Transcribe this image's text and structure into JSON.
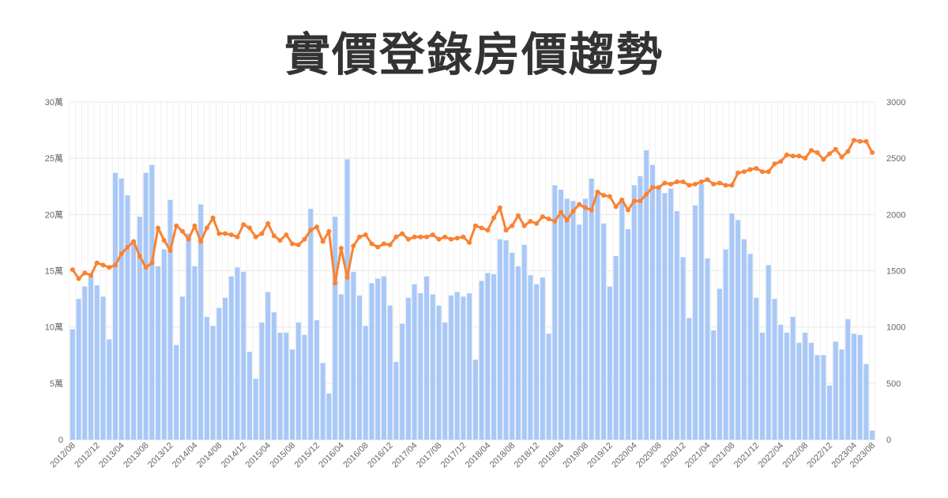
{
  "chart_data": {
    "type": "bar+line",
    "title": "實價登錄房價趨勢",
    "y_left": {
      "min": 0,
      "max": 300000,
      "ticks": [
        "0",
        "5萬",
        "10萬",
        "15萬",
        "20萬",
        "25萬",
        "30萬"
      ]
    },
    "y_right": {
      "min": 0,
      "max": 3000,
      "ticks": [
        "0",
        "500",
        "1000",
        "1500",
        "2000",
        "2500",
        "3000"
      ]
    },
    "x_start": "2012/08",
    "x_end": "2023/08",
    "x_labels": [
      "2012/08",
      "2012/12",
      "2013/04",
      "2013/08",
      "2013/12",
      "2014/04",
      "2014/08",
      "2014/12",
      "2015/04",
      "2015/08",
      "2015/12",
      "2016/04",
      "2016/08",
      "2016/12",
      "2017/04",
      "2017/08",
      "2017/12",
      "2018/04",
      "2018/08",
      "2018/12",
      "2019/04",
      "2019/08",
      "2019/12",
      "2020/04",
      "2020/08",
      "2020/12",
      "2021/04",
      "2021/08",
      "2021/12",
      "2022/04",
      "2022/08",
      "2022/12",
      "2023/04",
      "2023/08"
    ],
    "bar_color": "#a8c8f8",
    "line_color": "#fa8231",
    "series": [
      {
        "type": "bar",
        "axis": "right",
        "values": [
          980,
          1250,
          1360,
          1450,
          1370,
          1270,
          890,
          2370,
          2320,
          2170,
          1770,
          1980,
          2370,
          2440,
          1540,
          1690,
          2130,
          840,
          1270,
          1830,
          1540,
          2090,
          1090,
          1010,
          1170,
          1260,
          1450,
          1530,
          1490,
          780,
          540,
          1040,
          1310,
          1130,
          950,
          950,
          800,
          1040,
          930,
          2050,
          1060,
          680,
          410,
          1980,
          1290,
          2490,
          1490,
          1280,
          1010,
          1390,
          1430,
          1450,
          1190,
          690,
          1030,
          1260,
          1380,
          1300,
          1450,
          1290,
          1190,
          1040,
          1280,
          1310,
          1270,
          1300,
          710,
          1410,
          1480,
          1470,
          1780,
          1770,
          1660,
          1540,
          1730,
          1460,
          1380,
          1440,
          940,
          2260,
          2220,
          2140,
          2120,
          1910,
          2140,
          2320,
          2210,
          1920,
          1360,
          1630,
          2120,
          1870,
          2260,
          2340,
          2570,
          2440,
          2240,
          2190,
          2230,
          2030,
          1620,
          1080,
          2080,
          2270,
          1610,
          970,
          1340,
          1690,
          2010,
          1950,
          1780,
          1650,
          1260,
          950,
          1550,
          1250,
          1020,
          950,
          1090,
          860,
          950,
          860,
          750,
          750,
          480,
          870,
          800,
          1070,
          940,
          930,
          670,
          80
        ],
        "name": ""
      },
      {
        "type": "line",
        "axis": "left",
        "values": [
          151000,
          143000,
          148000,
          146000,
          157000,
          155000,
          153000,
          155000,
          165000,
          171000,
          176000,
          163000,
          153000,
          157000,
          188000,
          177000,
          168000,
          190000,
          185000,
          178000,
          190000,
          176000,
          188000,
          197000,
          183000,
          183000,
          182000,
          180000,
          191000,
          188000,
          180000,
          183000,
          192000,
          181000,
          177000,
          182000,
          174000,
          173000,
          178000,
          186000,
          189000,
          176000,
          185000,
          139000,
          170000,
          144000,
          172000,
          180000,
          182000,
          174000,
          171000,
          174000,
          173000,
          180000,
          183000,
          178000,
          180000,
          180000,
          180000,
          182000,
          178000,
          180000,
          178000,
          179000,
          180000,
          175000,
          190000,
          188000,
          186000,
          197000,
          206000,
          186000,
          190000,
          199000,
          190000,
          194000,
          192000,
          198000,
          196000,
          194000,
          202000,
          195000,
          203000,
          209000,
          206000,
          204000,
          220000,
          217000,
          216000,
          207000,
          213000,
          204000,
          212000,
          212000,
          218000,
          224000,
          224000,
          228000,
          227000,
          229000,
          229000,
          226000,
          227000,
          229000,
          231000,
          227000,
          228000,
          226000,
          226000,
          237000,
          238000,
          240000,
          241000,
          238000,
          238000,
          245000,
          247000,
          253000,
          252000,
          252000,
          250000,
          257000,
          255000,
          249000,
          254000,
          258000,
          251000,
          256000,
          266000,
          265000,
          265000,
          255000
        ],
        "name": ""
      }
    ],
    "grid": {
      "vertical": true,
      "horizontal": true
    },
    "legend": "none"
  }
}
